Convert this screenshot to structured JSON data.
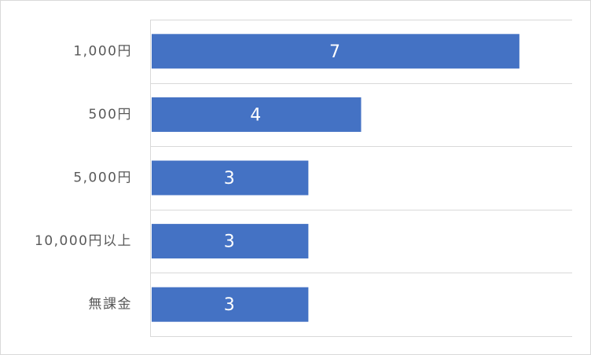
{
  "chart_data": {
    "type": "bar",
    "orientation": "horizontal",
    "categories": [
      "1,000円",
      "500円",
      "5,000円",
      "10,000円以上",
      "無課金"
    ],
    "values": [
      7,
      4,
      3,
      3,
      3
    ],
    "title": "",
    "xlabel": "",
    "ylabel": "",
    "xlim": [
      0,
      8
    ],
    "grid": true,
    "legend": "none",
    "colors": {
      "bar": "#4472C4",
      "grid": "#d9d9d9",
      "label": "#595959",
      "value_label": "#ffffff"
    }
  }
}
